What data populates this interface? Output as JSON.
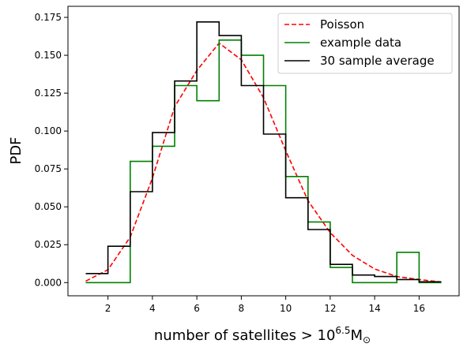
{
  "chart_data": {
    "type": "line",
    "xlabel": {
      "text": "number of satellites > 10",
      "superscript": "6.5",
      "mass": "M",
      "subscript": "⊙"
    },
    "ylabel": "PDF",
    "xlim": [
      0.2,
      17.8
    ],
    "ylim": [
      -0.0087,
      0.1823
    ],
    "x_ticks": [
      2,
      4,
      6,
      8,
      10,
      12,
      14,
      16
    ],
    "y_ticks": [
      0.0,
      0.025,
      0.05,
      0.075,
      0.1,
      0.125,
      0.15,
      0.175
    ],
    "y_tick_labels": [
      "0.000",
      "0.025",
      "0.050",
      "0.075",
      "0.100",
      "0.125",
      "0.150",
      "0.175"
    ],
    "grid": false,
    "legend_position": "top-right",
    "series": [
      {
        "name": "Poisson",
        "kind": "line",
        "style": "dashed",
        "color": "#ff0000",
        "x": [
          1,
          2,
          3,
          4,
          5,
          6,
          7,
          8,
          9,
          10,
          11,
          12,
          13,
          14,
          15,
          16,
          17
        ],
        "values": [
          0.001,
          0.0085,
          0.03,
          0.069,
          0.116,
          0.14,
          0.158,
          0.147,
          0.122,
          0.087,
          0.054,
          0.033,
          0.018,
          0.009,
          0.004,
          0.002,
          0.0004
        ]
      },
      {
        "name": "example data",
        "kind": "step",
        "color": "#008000",
        "bin_edges": [
          1,
          2,
          3,
          4,
          5,
          6,
          7,
          8,
          9,
          10,
          11,
          12,
          13,
          14,
          15,
          16,
          17
        ],
        "values": [
          0.0,
          0.0,
          0.08,
          0.09,
          0.13,
          0.12,
          0.16,
          0.15,
          0.13,
          0.07,
          0.04,
          0.01,
          0.0,
          0.0,
          0.02,
          0.0
        ]
      },
      {
        "name": "30 sample average",
        "kind": "step",
        "color": "#000000",
        "bin_edges": [
          1,
          2,
          3,
          4,
          5,
          6,
          7,
          8,
          9,
          10,
          11,
          12,
          13,
          14,
          15,
          16,
          17
        ],
        "values": [
          0.006,
          0.024,
          0.06,
          0.099,
          0.133,
          0.172,
          0.163,
          0.13,
          0.098,
          0.056,
          0.035,
          0.012,
          0.005,
          0.004,
          0.002,
          0.0005
        ]
      }
    ]
  }
}
